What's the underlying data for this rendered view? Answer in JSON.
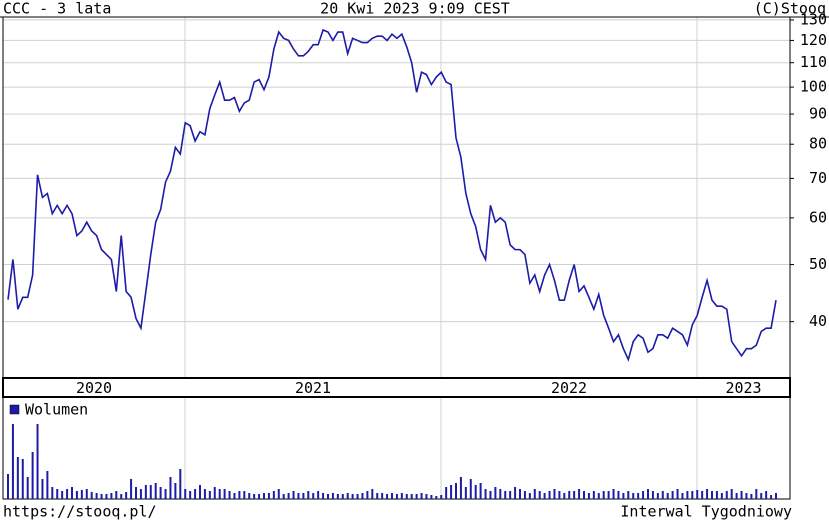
{
  "chart_data": {
    "type": "line",
    "title": "CCC - 3 lata",
    "timestamp": "20 Kwi 2023 9:09 CEST",
    "credit": "(C)Stooq",
    "footer_left": "https://stooq.pl/",
    "footer_right": "Interwal Tygodniowy",
    "log_y": true,
    "grid": true,
    "color": "#1c1ca8",
    "ylim": [
      32.1,
      131.5
    ],
    "yticks": [
      40,
      50,
      60,
      70,
      80,
      90,
      100,
      110,
      120,
      130
    ],
    "years": [
      "2020",
      "2021",
      "2022",
      "2023"
    ],
    "values": [
      43.6,
      51,
      42,
      44,
      44,
      48,
      71,
      65,
      66,
      61,
      63,
      61,
      63,
      61,
      56,
      57,
      59,
      57,
      56,
      53,
      52,
      51,
      45,
      56,
      45,
      44,
      40.5,
      39,
      45,
      52,
      59,
      62,
      69,
      72,
      79,
      77,
      87,
      86,
      81,
      84,
      83,
      92,
      97,
      102,
      95,
      95,
      96,
      91,
      94,
      95,
      102,
      103,
      99,
      104,
      116,
      124,
      121,
      120,
      116,
      113,
      113,
      115,
      118,
      118,
      125,
      124,
      120,
      124,
      124,
      114,
      121,
      120,
      119,
      119,
      121,
      122,
      122,
      120,
      123,
      121,
      123,
      117,
      110,
      98,
      106,
      105,
      101,
      104,
      106,
      102,
      101,
      82,
      76,
      66,
      61,
      58,
      53,
      51,
      63,
      59,
      60,
      59,
      54,
      53,
      53,
      52,
      46.5,
      48,
      45,
      48,
      50,
      47,
      43.5,
      43.5,
      47,
      50,
      45,
      46,
      44,
      42,
      44.5,
      41,
      39,
      37,
      38,
      36,
      34.5,
      37,
      38,
      37.5,
      35.5,
      36,
      38,
      38,
      37.5,
      39,
      38.5,
      38,
      36.5,
      39.5,
      41,
      44,
      47,
      43.5,
      42.5,
      42.5,
      42,
      37,
      36,
      35,
      36,
      36,
      36.5,
      38.5,
      39,
      39,
      43.5
    ],
    "volume": {
      "name": "Wolumen",
      "color": "#1c1ca8",
      "ylim": [
        0,
        100
      ],
      "values": [
        25,
        75,
        42,
        40,
        22,
        47,
        75,
        20,
        28,
        12,
        10,
        8,
        10,
        12,
        8,
        9,
        10,
        7,
        6,
        5,
        5,
        6,
        8,
        5,
        7,
        20,
        12,
        10,
        14,
        14,
        16,
        12,
        10,
        22,
        16,
        30,
        10,
        8,
        10,
        14,
        10,
        8,
        12,
        10,
        10,
        8,
        6,
        8,
        8,
        6,
        5,
        5,
        6,
        6,
        8,
        10,
        5,
        6,
        8,
        6,
        6,
        8,
        6,
        8,
        6,
        5,
        6,
        5,
        5,
        6,
        5,
        5,
        6,
        8,
        10,
        6,
        6,
        5,
        6,
        5,
        6,
        5,
        5,
        5,
        6,
        5,
        4,
        3,
        4,
        12,
        14,
        16,
        22,
        12,
        20,
        14,
        16,
        10,
        8,
        12,
        10,
        8,
        8,
        12,
        10,
        8,
        6,
        10,
        8,
        6,
        8,
        10,
        8,
        6,
        8,
        8,
        10,
        8,
        6,
        8,
        6,
        8,
        8,
        10,
        8,
        6,
        8,
        6,
        6,
        8,
        10,
        8,
        6,
        8,
        6,
        8,
        10,
        6,
        8,
        8,
        9,
        8,
        10,
        8,
        8,
        6,
        8,
        10,
        6,
        8,
        6,
        5,
        10,
        6,
        8,
        4,
        6
      ]
    }
  }
}
